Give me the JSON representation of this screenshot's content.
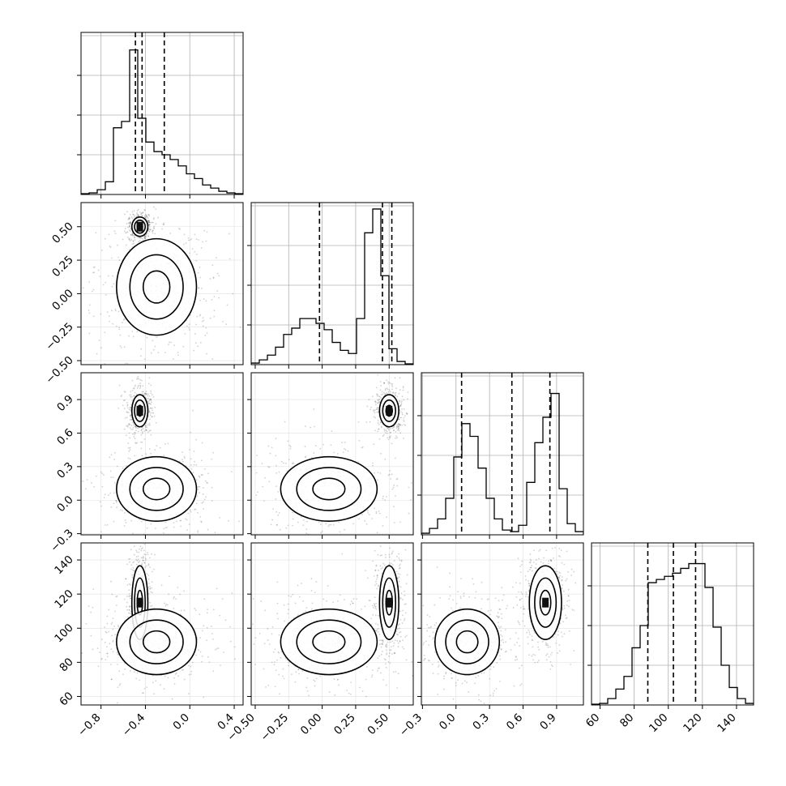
{
  "chart_data": {
    "type": "corner",
    "description_free": true,
    "params": [
      {
        "range": [
          -0.98,
          0.48
        ],
        "ticks": [
          -0.8,
          -0.4,
          0.0,
          0.4
        ],
        "tick_labels": [
          "−0.8",
          "−0.4",
          "0.0",
          "0.4"
        ],
        "quantiles": [
          -0.49,
          -0.43,
          -0.23
        ]
      },
      {
        "range": [
          -0.53,
          0.68
        ],
        "ticks": [
          -0.5,
          -0.25,
          0.0,
          0.25,
          0.5
        ],
        "tick_labels": [
          "−0.50",
          "−0.25",
          "0.00",
          "0.25",
          "0.50"
        ],
        "quantiles": [
          -0.02,
          0.45,
          0.52
        ]
      },
      {
        "range": [
          -0.31,
          1.14
        ],
        "ticks": [
          -0.3,
          0.0,
          0.3,
          0.6,
          0.9
        ],
        "tick_labels": [
          "−0.3",
          "0.0",
          "0.3",
          "0.6",
          "0.9"
        ],
        "quantiles": [
          0.05,
          0.5,
          0.84
        ]
      },
      {
        "range": [
          55,
          150
        ],
        "ticks": [
          60,
          80,
          100,
          120,
          140
        ],
        "tick_labels": [
          "60",
          "80",
          "100",
          "120",
          "140"
        ],
        "quantiles": [
          88,
          103,
          116
        ]
      }
    ],
    "histograms": [
      [
        0.005,
        0.01,
        0.03,
        0.08,
        0.42,
        0.46,
        0.91,
        0.48,
        0.33,
        0.27,
        0.25,
        0.22,
        0.18,
        0.13,
        0.1,
        0.06,
        0.04,
        0.02,
        0.01,
        0.005
      ],
      [
        0.01,
        0.03,
        0.06,
        0.11,
        0.19,
        0.23,
        0.29,
        0.29,
        0.26,
        0.22,
        0.14,
        0.09,
        0.07,
        0.29,
        0.83,
        0.98,
        0.56,
        0.1,
        0.02,
        0.005
      ],
      [
        0.01,
        0.04,
        0.1,
        0.23,
        0.49,
        0.7,
        0.62,
        0.42,
        0.23,
        0.1,
        0.03,
        0.02,
        0.06,
        0.33,
        0.58,
        0.74,
        0.89,
        0.29,
        0.07,
        0.02
      ],
      [
        0.005,
        0.01,
        0.04,
        0.1,
        0.18,
        0.36,
        0.5,
        0.77,
        0.79,
        0.81,
        0.83,
        0.86,
        0.89,
        0.89,
        0.74,
        0.49,
        0.25,
        0.11,
        0.04,
        0.01
      ]
    ],
    "clusters": [
      {
        "mean": [
          -0.45,
          0.5,
          0.8,
          115
        ],
        "sd": [
          0.03,
          0.03,
          0.06,
          9
        ],
        "weight": 0.5
      },
      {
        "mean": [
          -0.3,
          0.05,
          0.1,
          92
        ],
        "sd": [
          0.15,
          0.15,
          0.12,
          8
        ],
        "weight": 0.5
      }
    ],
    "contour_levels_sigma": [
      0.5,
      1.0,
      1.5
    ]
  }
}
